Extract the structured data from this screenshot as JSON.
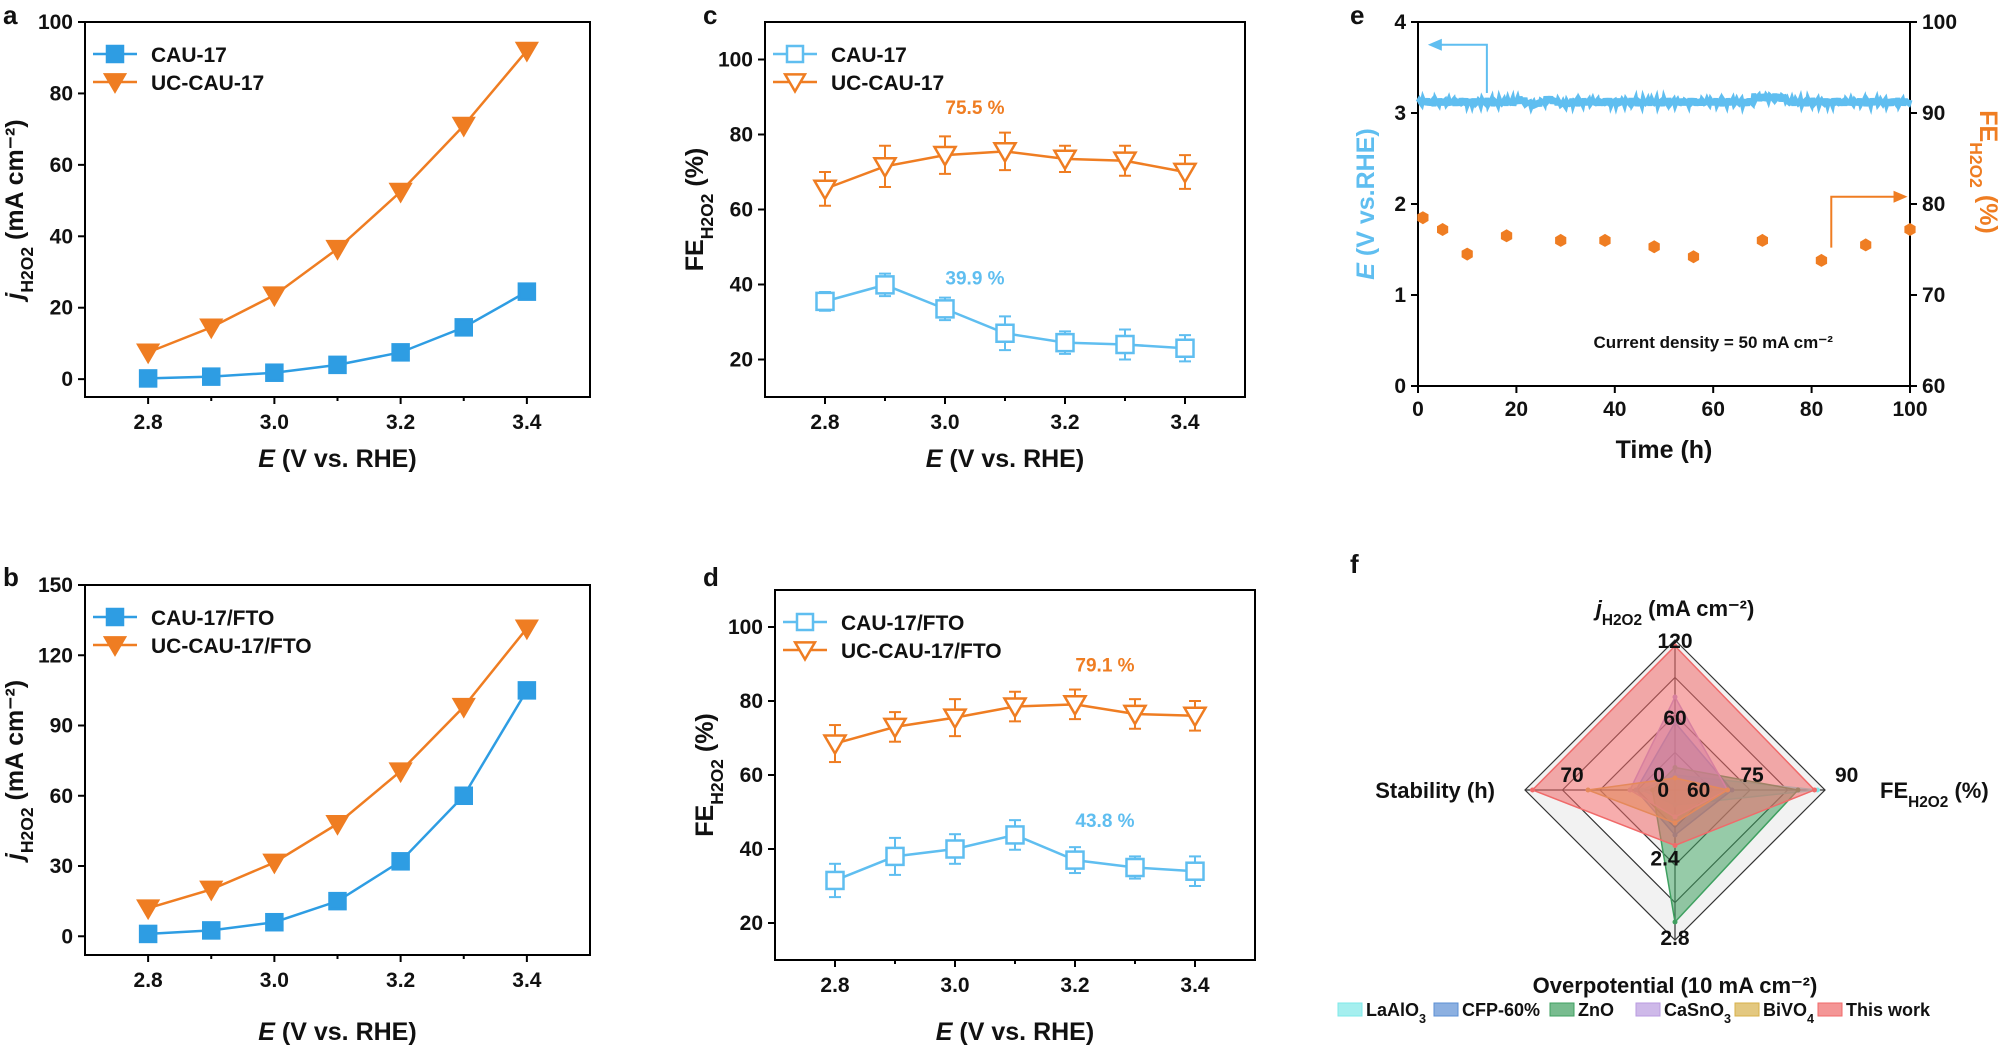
{
  "colors": {
    "blue": "#2e9de3",
    "orange": "#ef7d22",
    "lightblue": "#5fbef0"
  },
  "panels": [
    {
      "id": "a",
      "letter": "a",
      "type": "line",
      "x": [
        2.8,
        2.9,
        3.0,
        3.1,
        3.2,
        3.3,
        3.4
      ],
      "xlim": [
        2.7,
        3.5
      ],
      "xticks": [
        "2.8",
        "3.0",
        "3.2",
        "3.4"
      ],
      "xtick_vals": [
        2.8,
        3.0,
        3.2,
        3.4
      ],
      "ylim": [
        -5,
        100
      ],
      "yticks": [
        "0",
        "20",
        "40",
        "60",
        "80",
        "100"
      ],
      "ytick_vals": [
        0,
        20,
        40,
        60,
        80,
        100
      ],
      "series": [
        {
          "name": "CAU-17",
          "color": "#2e9de3",
          "marker": "square",
          "filled": true,
          "values": [
            0.2,
            0.7,
            1.8,
            4,
            7.5,
            14.5,
            24.5
          ]
        },
        {
          "name": "UC-CAU-17",
          "color": "#ef7d22",
          "marker": "tri-down",
          "filled": true,
          "values": [
            7.5,
            14.5,
            23.5,
            36.5,
            52.5,
            71,
            92
          ]
        }
      ]
    },
    {
      "id": "b",
      "letter": "b",
      "type": "line",
      "x": [
        2.8,
        2.9,
        3.0,
        3.1,
        3.2,
        3.3,
        3.4
      ],
      "xlim": [
        2.7,
        3.5
      ],
      "xticks": [
        "2.8",
        "3.0",
        "3.2",
        "3.4"
      ],
      "xtick_vals": [
        2.8,
        3.0,
        3.2,
        3.4
      ],
      "ylim": [
        -8,
        150
      ],
      "yticks": [
        "0",
        "30",
        "60",
        "90",
        "120",
        "150"
      ],
      "ytick_vals": [
        0,
        30,
        60,
        90,
        120,
        150
      ],
      "series": [
        {
          "name": "CAU-17/FTO",
          "color": "#2e9de3",
          "marker": "square",
          "filled": true,
          "values": [
            1,
            2.5,
            6,
            15,
            32,
            60,
            105
          ]
        },
        {
          "name": "UC-CAU-17/FTO",
          "color": "#ef7d22",
          "marker": "tri-down",
          "filled": true,
          "values": [
            12,
            20,
            31.5,
            48,
            70.5,
            98,
            131.5
          ]
        }
      ]
    },
    {
      "id": "c",
      "letter": "c",
      "type": "line",
      "x": [
        2.8,
        2.9,
        3.0,
        3.1,
        3.2,
        3.3,
        3.4
      ],
      "xlim": [
        2.7,
        3.5
      ],
      "xticks": [
        "2.8",
        "3.0",
        "3.2",
        "3.4"
      ],
      "xtick_vals": [
        2.8,
        3.0,
        3.2,
        3.4
      ],
      "ylim": [
        10,
        110
      ],
      "yticks": [
        "20",
        "40",
        "60",
        "80",
        "100"
      ],
      "ytick_vals": [
        20,
        40,
        60,
        80,
        100
      ],
      "series": [
        {
          "name": "CAU-17",
          "color": "#5fbef0",
          "marker": "square",
          "filled": false,
          "values": [
            35.5,
            39.9,
            33.5,
            27,
            24.5,
            24,
            23
          ],
          "errors": [
            2.5,
            3,
            3,
            4.5,
            3,
            4,
            3.5
          ]
        },
        {
          "name": "UC-CAU-17",
          "color": "#ef7d22",
          "marker": "tri-down",
          "filled": false,
          "values": [
            65.5,
            71.5,
            74.5,
            75.5,
            73.5,
            73,
            70
          ],
          "errors": [
            4.5,
            5.5,
            5,
            5,
            3.5,
            4,
            4.5
          ]
        }
      ],
      "annotations": [
        {
          "text": "75.5 %",
          "x": 3.05,
          "y": 85.5,
          "color": "#ef7d22"
        },
        {
          "text": "39.9 %",
          "x": 3.05,
          "y": 40,
          "color": "#5fbef0"
        }
      ]
    },
    {
      "id": "d",
      "letter": "d",
      "type": "line",
      "x": [
        2.8,
        2.9,
        3.0,
        3.1,
        3.2,
        3.3,
        3.4
      ],
      "xlim": [
        2.7,
        3.5
      ],
      "xticks": [
        "2.8",
        "3.0",
        "3.2",
        "3.4"
      ],
      "xtick_vals": [
        2.8,
        3.0,
        3.2,
        3.4
      ],
      "ylim": [
        10,
        110
      ],
      "yticks": [
        "20",
        "40",
        "60",
        "80",
        "100"
      ],
      "ytick_vals": [
        20,
        40,
        60,
        80,
        100
      ],
      "series": [
        {
          "name": "CAU-17/FTO",
          "color": "#5fbef0",
          "marker": "square",
          "filled": false,
          "values": [
            31.5,
            38,
            40,
            43.8,
            37,
            35,
            34
          ],
          "errors": [
            4.5,
            5,
            4,
            4,
            3.5,
            3,
            4
          ]
        },
        {
          "name": "UC-CAU-17/FTO",
          "color": "#ef7d22",
          "marker": "tri-down",
          "filled": false,
          "values": [
            68.5,
            73,
            75.5,
            78.5,
            79.1,
            76.5,
            76
          ],
          "errors": [
            5,
            4,
            5,
            4,
            4,
            4,
            4
          ]
        }
      ],
      "annotations": [
        {
          "text": "79.1 %",
          "x": 3.25,
          "y": 88,
          "color": "#ef7d22"
        },
        {
          "text": "43.8 %",
          "x": 3.25,
          "y": 46,
          "color": "#5fbef0"
        }
      ]
    },
    {
      "id": "e",
      "letter": "e",
      "type": "dual-axis",
      "xlim": [
        0,
        100
      ],
      "xticks": [
        "0",
        "20",
        "40",
        "60",
        "80",
        "100"
      ],
      "xtick_vals": [
        0,
        20,
        40,
        60,
        80,
        100
      ],
      "ylim": [
        0,
        4
      ],
      "yticks": [
        "0",
        "1",
        "2",
        "3",
        "4"
      ],
      "ytick_vals": [
        0,
        1,
        2,
        3,
        4
      ],
      "y2lim": [
        60,
        100
      ],
      "y2ticks": [
        "60",
        "70",
        "80",
        "90",
        "100"
      ],
      "y2tick_vals": [
        60,
        70,
        80,
        90,
        100
      ],
      "potential_mean": 3.12,
      "fe_x": [
        1,
        5,
        10,
        18,
        29,
        38,
        48,
        56,
        70,
        82,
        91,
        100
      ],
      "fe_y": [
        78.5,
        77.2,
        74.5,
        76.5,
        76,
        76,
        75.3,
        74.2,
        76,
        73.8,
        75.5,
        77.2
      ],
      "annotation": "Current density = 50 mA cm⁻²"
    },
    {
      "id": "f",
      "letter": "f",
      "type": "radar",
      "axes": {
        "top": {
          "label_main": "j",
          "label_sub": "H2O2",
          "label_rest": " (mA cm⁻²)",
          "ticks": [
            "120",
            "60",
            "0"
          ]
        },
        "right": {
          "label_main": "FE",
          "label_sub": "H2O2",
          "label_rest": " (%)",
          "ticks": [
            "90",
            "75",
            "60"
          ]
        },
        "bottom": {
          "label_main": "Overpotential (10 mA cm⁻²)",
          "ticks": [
            "2.8",
            "2.4"
          ]
        },
        "left": {
          "label_main": "Stability (h)",
          "ticks": [
            "70",
            "0"
          ]
        }
      },
      "series": [
        {
          "name": "LaAlO",
          "name_sub": "3",
          "color": "#7fe8e8",
          "values": [
            0.1,
            0.95,
            0.1,
            0.22
          ]
        },
        {
          "name": "CFP-60%",
          "name_sub": "",
          "color": "#5b8fd4",
          "values": [
            0.45,
            0.38,
            0.3,
            0.26
          ]
        },
        {
          "name": "ZnO",
          "name_sub": "",
          "color": "#3fa060",
          "values": [
            0.15,
            0.82,
            0.88,
            0.15
          ]
        },
        {
          "name": "CaSnO",
          "name_sub": "3",
          "color": "#b99be0",
          "values": [
            0.62,
            0.35,
            0.18,
            0.3
          ]
        },
        {
          "name": "BiVO",
          "name_sub": "4",
          "color": "#d7b04a",
          "values": [
            0.08,
            0.35,
            0.22,
            0.58
          ]
        },
        {
          "name": "This work",
          "name_sub": "",
          "color": "#f06a6a",
          "values": [
            0.96,
            0.93,
            0.37,
            0.95
          ]
        }
      ]
    }
  ],
  "labels": {
    "E_axis_italic": "E",
    "E_axis_rest": " (V vs. RHE)",
    "j_italic": "j",
    "j_sub": "H2O2",
    "j_rest": " (mA cm⁻²)",
    "fe_main": "FE",
    "fe_sub": "H2O2",
    "fe_rest": " (%)",
    "time_axis": "Time (h)",
    "e_left_italic": "E",
    "e_left_rest": " (V vs.RHE)",
    "e_right_main": "FE",
    "e_right_sub": "H2O2",
    "e_right_rest": " (%)"
  }
}
